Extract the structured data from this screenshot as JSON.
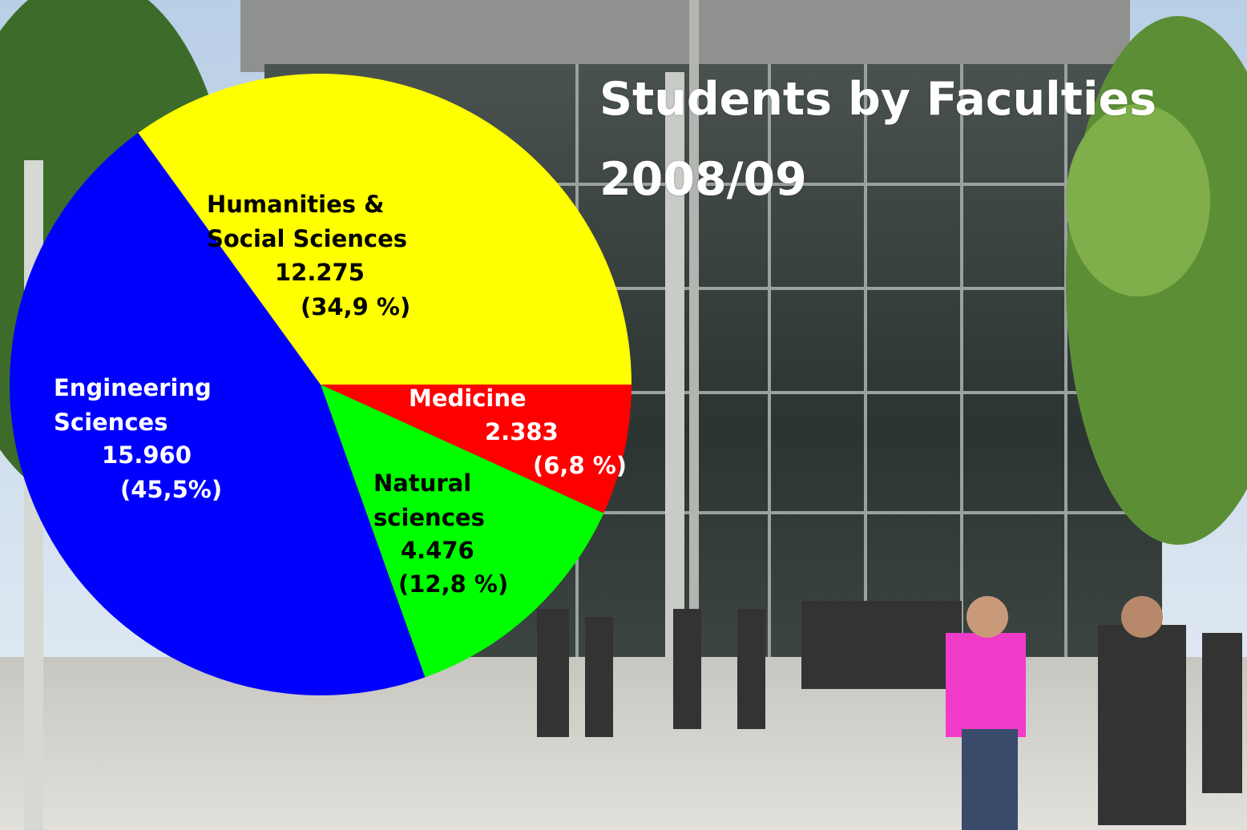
{
  "chart_data": {
    "type": "pie",
    "title": "Students by Faculties\n2008/09",
    "categories": [
      "Medicine",
      "Natural\nsciences",
      "Engineering\nSciences",
      "Humanities &\nSocial Sciences"
    ],
    "values": [
      2383,
      4476,
      15960,
      12275
    ],
    "value_labels": [
      "2.383",
      "4.476",
      "15.960",
      "12.275"
    ],
    "percent_labels": [
      "(6,8 %)",
      "(12,8 %)",
      "(45,5%)",
      "(34,9 %)"
    ],
    "colors": [
      "#ff0000",
      "#00ff00",
      "#0000ff",
      "#ffff00"
    ],
    "label_colors": [
      "#ffffff",
      "#000000",
      "#ffffff",
      "#000000"
    ]
  }
}
